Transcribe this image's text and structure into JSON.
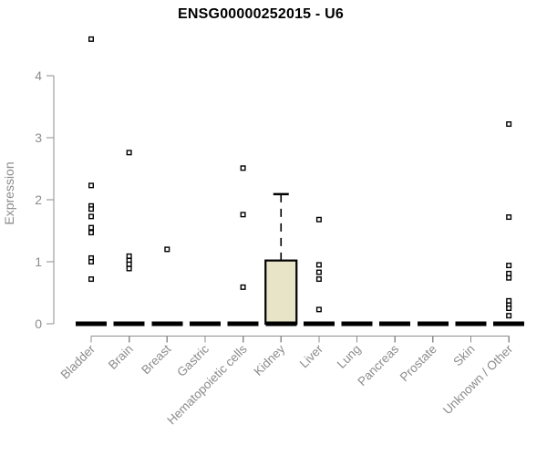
{
  "title": "ENSG00000252015 - U6",
  "chart_data": {
    "type": "boxplot",
    "title": "ENSG00000252015 - U6",
    "xlabel": "",
    "ylabel": "Expression",
    "ylim": [
      0,
      4
    ],
    "yticks": [
      0,
      1,
      2,
      3,
      4
    ],
    "grid": false,
    "legend_position": "none",
    "categories": [
      "Bladder",
      "Brain",
      "Breast",
      "Gastric",
      "Hematopoietic cells",
      "Kidney",
      "Liver",
      "Lung",
      "Pancreas",
      "Prostate",
      "Skin",
      "Unknown / Other"
    ],
    "boxes": [
      {
        "category": "Bladder",
        "median": 0,
        "q1": 0,
        "q3": 0,
        "whisker_low": 0,
        "whisker_high": 0,
        "outliers": [
          4.59,
          2.23,
          1.9,
          1.85,
          1.73,
          1.55,
          1.47,
          1.06,
          1.0,
          0.72
        ]
      },
      {
        "category": "Brain",
        "median": 0,
        "q1": 0,
        "q3": 0,
        "whisker_low": 0,
        "whisker_high": 0,
        "outliers": [
          2.76,
          1.09,
          1.02,
          0.96,
          0.89
        ]
      },
      {
        "category": "Breast",
        "median": 0,
        "q1": 0,
        "q3": 0,
        "whisker_low": 0,
        "whisker_high": 0,
        "outliers": [
          1.2
        ]
      },
      {
        "category": "Gastric",
        "median": 0,
        "q1": 0,
        "q3": 0,
        "whisker_low": 0,
        "whisker_high": 0,
        "outliers": []
      },
      {
        "category": "Hematopoietic cells",
        "median": 0,
        "q1": 0,
        "q3": 0,
        "whisker_low": 0,
        "whisker_high": 0,
        "outliers": [
          2.51,
          1.76,
          0.59
        ]
      },
      {
        "category": "Kidney",
        "median": 0,
        "q1": 0,
        "q3": 1.02,
        "whisker_low": 0,
        "whisker_high": 2.09,
        "outliers": []
      },
      {
        "category": "Liver",
        "median": 0,
        "q1": 0,
        "q3": 0,
        "whisker_low": 0,
        "whisker_high": 0,
        "outliers": [
          1.68,
          0.95,
          0.83,
          0.72,
          0.23
        ]
      },
      {
        "category": "Lung",
        "median": 0,
        "q1": 0,
        "q3": 0,
        "whisker_low": 0,
        "whisker_high": 0,
        "outliers": []
      },
      {
        "category": "Pancreas",
        "median": 0,
        "q1": 0,
        "q3": 0,
        "whisker_low": 0,
        "whisker_high": 0,
        "outliers": []
      },
      {
        "category": "Prostate",
        "median": 0,
        "q1": 0,
        "q3": 0,
        "whisker_low": 0,
        "whisker_high": 0,
        "outliers": []
      },
      {
        "category": "Skin",
        "median": 0,
        "q1": 0,
        "q3": 0,
        "whisker_low": 0,
        "whisker_high": 0,
        "outliers": []
      },
      {
        "category": "Unknown / Other",
        "median": 0,
        "q1": 0,
        "q3": 0,
        "whisker_low": 0,
        "whisker_high": 0,
        "outliers": [
          3.22,
          1.72,
          0.94,
          0.81,
          0.74,
          0.37,
          0.3,
          0.25,
          0.13
        ]
      }
    ],
    "colors": {
      "box_fill": "#E8E4C8",
      "box_border": "#000000",
      "median": "#000000",
      "outlier": "#000000",
      "axis": "#8c8c8c",
      "tick_label": "#8c8c8c",
      "title": "#000000",
      "background": "#ffffff"
    }
  }
}
